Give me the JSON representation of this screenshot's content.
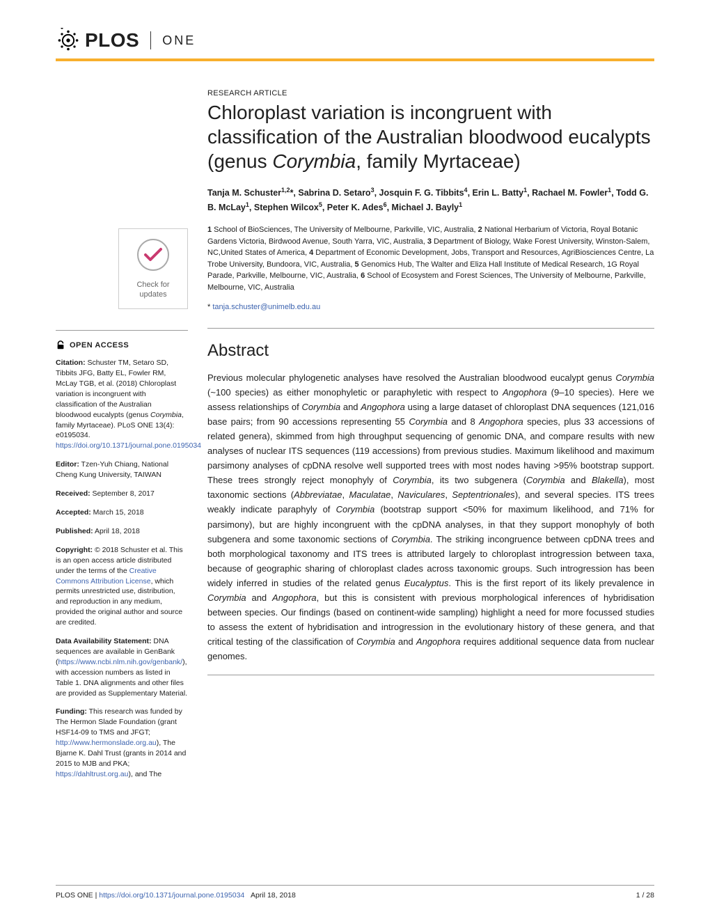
{
  "header": {
    "logo_text": "PLOS",
    "journal": "ONE"
  },
  "check_updates": {
    "line1": "Check for",
    "line2": "updates"
  },
  "sidebar": {
    "open_access": "OPEN ACCESS",
    "citation_label": "Citation:",
    "citation_text": " Schuster TM, Setaro SD, Tibbits JFG, Batty EL, Fowler RM, McLay TGB, et al. (2018) Chloroplast variation is incongruent with classification of the Australian bloodwood eucalypts (genus ",
    "citation_italic": "Corymbia",
    "citation_text2": ", family Myrtaceae). PLoS ONE 13(4): e0195034. ",
    "citation_link": "https://doi.org/10.1371/journal.pone.0195034",
    "editor_label": "Editor:",
    "editor_text": " Tzen-Yuh Chiang, National Cheng Kung University, TAIWAN",
    "received_label": "Received:",
    "received_text": " September 8, 2017",
    "accepted_label": "Accepted:",
    "accepted_text": " March 15, 2018",
    "published_label": "Published:",
    "published_text": " April 18, 2018",
    "copyright_label": "Copyright:",
    "copyright_text": " © 2018 Schuster et al. This is an open access article distributed under the terms of the ",
    "copyright_link": "Creative Commons Attribution License",
    "copyright_text2": ", which permits unrestricted use, distribution, and reproduction in any medium, provided the original author and source are credited.",
    "data_label": "Data Availability Statement:",
    "data_text": " DNA sequences are available in GenBank (",
    "data_link": "https://www.ncbi.nlm.nih.gov/genbank/",
    "data_text2": "), with accession numbers as listed in Table 1. DNA alignments and other files are provided as Supplementary Material.",
    "funding_label": "Funding:",
    "funding_text": " This research was funded by The Hermon Slade Foundation (grant HSF14-09 to TMS and JFGT; ",
    "funding_link1": "http://www.hermonslade.org.au",
    "funding_text2": "), The Bjarne K. Dahl Trust (grants in 2014 and 2015 to MJB and PKA; ",
    "funding_link2": "https://dahltrust.org.au",
    "funding_text3": "), and The"
  },
  "article": {
    "type": "RESEARCH ARTICLE",
    "title_part1": "Chloroplast variation is incongruent with classification of the Australian bloodwood eucalypts (genus ",
    "title_italic": "Corymbia",
    "title_part2": ", family Myrtaceae)",
    "authors_html": "Tanja M. Schuster<sup>1,2</sup>*, Sabrina D. Setaro<sup>3</sup>, Josquin F. G. Tibbits<sup>4</sup>, Erin L. Batty<sup>1</sup>, Rachael M. Fowler<sup>1</sup>, Todd G. B. McLay<sup>1</sup>, Stephen Wilcox<sup>5</sup>, Peter K. Ades<sup>6</sup>, Michael J. Bayly<sup>1</sup>",
    "affiliations_html": "<b>1</b> School of BioSciences, The University of Melbourne, Parkville, VIC, Australia, <b>2</b> National Herbarium of Victoria, Royal Botanic Gardens Victoria, Birdwood Avenue, South Yarra, VIC, Australia, <b>3</b> Department of Biology, Wake Forest University, Winston-Salem, NC,United States of America, <b>4</b> Department of Economic Development, Jobs, Transport and Resources, AgriBiosciences Centre, La Trobe University, Bundoora, VIC, Australia, <b>5</b> Genomics Hub, The Walter and Eliza Hall Institute of Medical Research, 1G Royal Parade, Parkville, Melbourne, VIC, Australia, <b>6</b> School of Ecosystem and Forest Sciences, The University of Melbourne, Parkville, Melbourne, VIC, Australia",
    "corresponding_prefix": "* ",
    "corresponding_email": "tanja.schuster@unimelb.edu.au",
    "abstract_heading": "Abstract",
    "abstract_html": "Previous molecular phylogenetic analyses have resolved the Australian bloodwood eucalypt genus <em>Corymbia</em> (~100 species) as either monophyletic or paraphyletic with respect to <em>Angophora</em> (9–10 species). Here we assess relationships of <em>Corymbia</em> and <em>Angophora</em> using a large dataset of chloroplast DNA sequences (121,016 base pairs; from 90 accessions representing 55 <em>Corymbia</em> and 8 <em>Angophora</em> species, plus 33 accessions of related genera), skimmed from high throughput sequencing of genomic DNA, and compare results with new analyses of nuclear ITS sequences (119 accessions) from previous studies. Maximum likelihood and maximum parsimony analyses of cpDNA resolve well supported trees with most nodes having >95% bootstrap support. These trees strongly reject monophyly of <em>Corymbia</em>, its two subgenera (<em>Corymbia</em> and <em>Blakella</em>), most taxonomic sections (<em>Abbreviatae</em>, <em>Maculatae</em>, <em>Naviculares</em>, <em>Septentrionales</em>), and several species. ITS trees weakly indicate paraphyly of <em>Corymbia</em> (bootstrap support <50% for maximum likelihood, and 71% for parsimony), but are highly incongruent with the cpDNA analyses, in that they support monophyly of both subgenera and some taxonomic sections of <em>Corymbia</em>. The striking incongruence between cpDNA trees and both morphological taxonomy and ITS trees is attributed largely to chloroplast introgression between taxa, because of geographic sharing of chloroplast clades across taxonomic groups. Such introgression has been widely inferred in studies of the related genus <em>Eucalyptus</em>. This is the first report of its likely prevalence in <em>Corymbia</em> and <em>Angophora</em>, but this is consistent with previous morphological inferences of hybridisation between species. Our findings (based on continent-wide sampling) highlight a need for more focussed studies to assess the extent of hybridisation and introgression in the evolutionary history of these genera, and that critical testing of the classification of <em>Corymbia</em> and <em>Angophora</em> requires additional sequence data from nuclear genomes."
  },
  "footer": {
    "journal": "PLOS ONE | ",
    "doi": "https://doi.org/10.1371/journal.pone.0195034",
    "date": "April 18, 2018",
    "page": "1 / 28"
  },
  "colors": {
    "accent": "#f8af2d",
    "link": "#3c63af"
  }
}
